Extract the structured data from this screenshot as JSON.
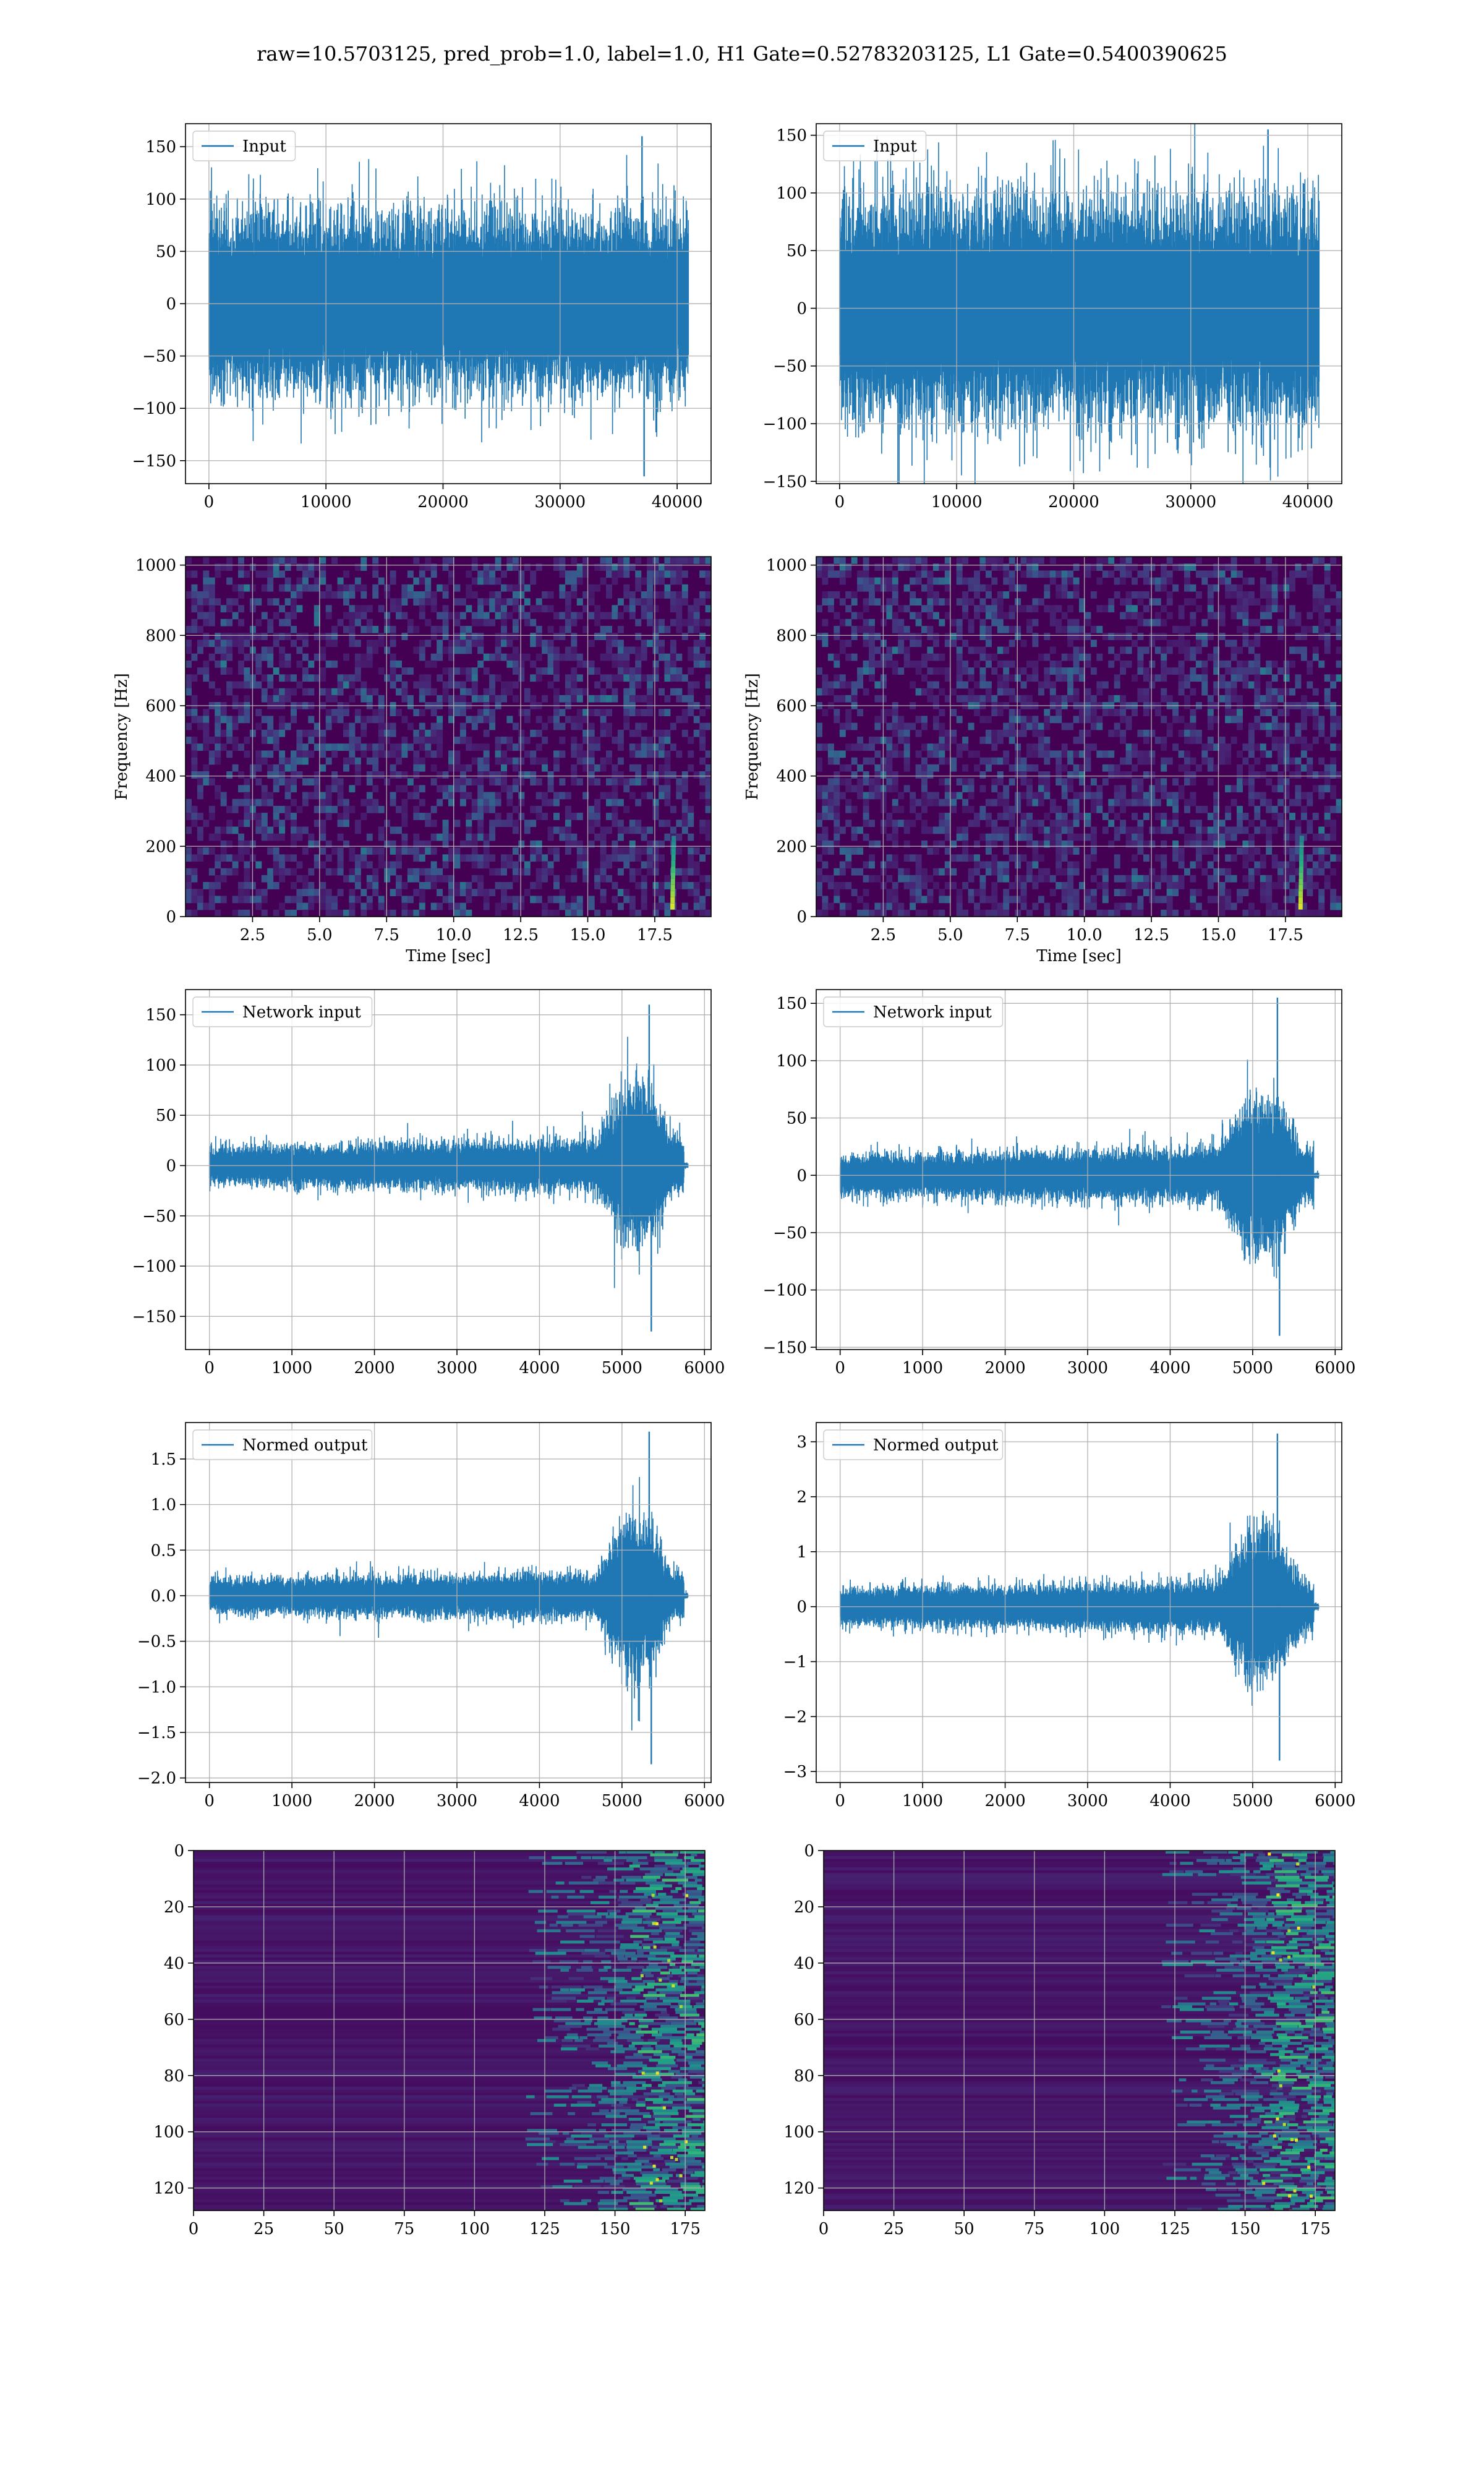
{
  "figure": {
    "suptitle": "raw=10.5703125, pred_prob=1.0, label=1.0, H1 Gate=0.52783203125, L1 Gate=0.5400390625"
  },
  "colors": {
    "series": "#1f77b4",
    "grid": "#b0b0b0",
    "viridis_low": "#440154",
    "viridis_mid": "#21918c",
    "viridis_high": "#fde725"
  },
  "chart_data": [
    {
      "id": "h1-input",
      "row": 0,
      "col": 0,
      "type": "line",
      "series": [
        {
          "name": "Input"
        }
      ],
      "legend": "top-left",
      "grid": true,
      "xlim": [
        -2000,
        42900
      ],
      "ylim": [
        -172,
        172
      ],
      "xticks": [
        0,
        10000,
        20000,
        30000,
        40000
      ],
      "yticks": [
        -150,
        -100,
        -50,
        0,
        50,
        100,
        150
      ],
      "signal": {
        "x_start": 0,
        "x_end": 40960,
        "kind": "noise",
        "envelope_level": 62,
        "peak_min": -165,
        "peak_max": 160,
        "spike_x": 37000
      }
    },
    {
      "id": "l1-input",
      "row": 0,
      "col": 1,
      "type": "line",
      "series": [
        {
          "name": "Input"
        }
      ],
      "legend": "top-left",
      "grid": true,
      "xlim": [
        -2000,
        42900
      ],
      "ylim": [
        -152,
        160
      ],
      "xticks": [
        0,
        10000,
        20000,
        30000,
        40000
      ],
      "yticks": [
        -150,
        -100,
        -50,
        0,
        50,
        100,
        150
      ],
      "signal": {
        "x_start": 0,
        "x_end": 40960,
        "kind": "noise",
        "envelope_level": 70,
        "peak_min": -138,
        "peak_max": 155,
        "spike_x": 36600
      }
    },
    {
      "id": "h1-spectrogram",
      "row": 1,
      "col": 0,
      "type": "heatmap",
      "xlabel": "Time [sec]",
      "ylabel": "Frequency [Hz]",
      "grid": true,
      "colormap": "viridis",
      "xlim": [
        0,
        19.6
      ],
      "ylim": [
        0,
        1024
      ],
      "xticks": [
        2.5,
        5.0,
        7.5,
        10.0,
        12.5,
        15.0,
        17.5
      ],
      "yticks": [
        0,
        200,
        400,
        600,
        800,
        1000
      ],
      "chirp": {
        "time": 18.2,
        "freq_low": 20,
        "freq_high": 230
      }
    },
    {
      "id": "l1-spectrogram",
      "row": 1,
      "col": 1,
      "type": "heatmap",
      "xlabel": "Time [sec]",
      "ylabel": "Frequency [Hz]",
      "grid": true,
      "colormap": "viridis",
      "xlim": [
        0,
        19.6
      ],
      "ylim": [
        0,
        1024
      ],
      "xticks": [
        2.5,
        5.0,
        7.5,
        10.0,
        12.5,
        15.0,
        17.5
      ],
      "yticks": [
        0,
        200,
        400,
        600,
        800,
        1000
      ],
      "chirp": {
        "time": 18.1,
        "freq_low": 20,
        "freq_high": 230
      }
    },
    {
      "id": "h1-network-input",
      "row": 2,
      "col": 0,
      "type": "line",
      "series": [
        {
          "name": "Network input"
        }
      ],
      "legend": "top-left",
      "grid": true,
      "xlim": [
        -290,
        6080
      ],
      "ylim": [
        -183,
        175
      ],
      "xticks": [
        0,
        1000,
        2000,
        3000,
        4000,
        5000,
        6000
      ],
      "yticks": [
        -150,
        -100,
        -50,
        0,
        50,
        100,
        150
      ],
      "signal": {
        "x_start": 0,
        "x_end": 5800,
        "kind": "chirp",
        "base_level": 14,
        "burst_start": 4700,
        "burst_end": 5750,
        "burst_level": 55,
        "peak_x": 5330,
        "peak_max": 160,
        "peak_min": -165,
        "tail_level": 2
      }
    },
    {
      "id": "l1-network-input",
      "row": 2,
      "col": 1,
      "type": "line",
      "series": [
        {
          "name": "Network input"
        }
      ],
      "legend": "top-left",
      "grid": true,
      "xlim": [
        -290,
        6080
      ],
      "ylim": [
        -152,
        162
      ],
      "xticks": [
        0,
        1000,
        2000,
        3000,
        4000,
        5000,
        6000
      ],
      "yticks": [
        -150,
        -100,
        -50,
        0,
        50,
        100,
        150
      ],
      "signal": {
        "x_start": 0,
        "x_end": 5800,
        "kind": "chirp",
        "base_level": 13,
        "burst_start": 4600,
        "burst_end": 5740,
        "burst_level": 50,
        "peak_x": 5300,
        "peak_max": 155,
        "peak_min": -140,
        "tail_level": 2
      }
    },
    {
      "id": "h1-normed-output",
      "row": 3,
      "col": 0,
      "type": "line",
      "series": [
        {
          "name": "Normed output"
        }
      ],
      "legend": "top-left",
      "grid": true,
      "xlim": [
        -290,
        6080
      ],
      "ylim": [
        -2.05,
        1.9
      ],
      "xticks": [
        0,
        1000,
        2000,
        3000,
        4000,
        5000,
        6000
      ],
      "yticks": [
        -2.0,
        -1.5,
        -1.0,
        -0.5,
        0.0,
        0.5,
        1.0,
        1.5
      ],
      "signal": {
        "x_start": 0,
        "x_end": 5800,
        "kind": "chirp",
        "base_level": 0.14,
        "burst_start": 4700,
        "burst_end": 5750,
        "burst_level": 0.6,
        "peak_x": 5330,
        "peak_max": 1.8,
        "peak_min": -1.85,
        "tail_level": 0.02
      }
    },
    {
      "id": "l1-normed-output",
      "row": 3,
      "col": 1,
      "type": "line",
      "series": [
        {
          "name": "Normed output"
        }
      ],
      "legend": "top-left",
      "grid": true,
      "xlim": [
        -290,
        6080
      ],
      "ylim": [
        -3.2,
        3.35
      ],
      "xticks": [
        0,
        1000,
        2000,
        3000,
        4000,
        5000,
        6000
      ],
      "yticks": [
        -3,
        -2,
        -1,
        0,
        1,
        2,
        3
      ],
      "signal": {
        "x_start": 0,
        "x_end": 5800,
        "kind": "chirp",
        "base_level": 0.25,
        "burst_start": 4600,
        "burst_end": 5740,
        "burst_level": 1.0,
        "peak_x": 5300,
        "peak_max": 3.15,
        "peak_min": -2.8,
        "tail_level": 0.05
      }
    },
    {
      "id": "h1-feature-map",
      "row": 4,
      "col": 0,
      "type": "heatmap",
      "grid": true,
      "colormap": "viridis",
      "y_inverted": true,
      "xlim": [
        0,
        182
      ],
      "ylim": [
        128,
        0
      ],
      "xticks": [
        0,
        25,
        50,
        75,
        100,
        125,
        150,
        175
      ],
      "yticks": [
        0,
        20,
        40,
        60,
        80,
        100,
        120
      ],
      "activation": {
        "onset_col": 118,
        "bright_cols": [
          155,
          175
        ]
      }
    },
    {
      "id": "l1-feature-map",
      "row": 4,
      "col": 1,
      "type": "heatmap",
      "grid": true,
      "colormap": "viridis",
      "y_inverted": true,
      "xlim": [
        0,
        182
      ],
      "ylim": [
        128,
        0
      ],
      "xticks": [
        0,
        25,
        50,
        75,
        100,
        125,
        150,
        175
      ],
      "yticks": [
        0,
        20,
        40,
        60,
        80,
        100,
        120
      ],
      "activation": {
        "onset_col": 120,
        "bright_cols": [
          155,
          175
        ]
      }
    }
  ]
}
